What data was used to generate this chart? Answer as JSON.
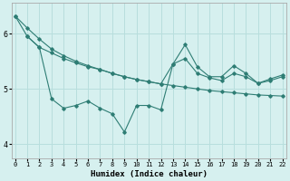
{
  "xlabel": "Humidex (Indice chaleur)",
  "background_color": "#d6f0ef",
  "grid_color": "#b8dedd",
  "line_color": "#2e7d74",
  "ylim": [
    3.75,
    6.55
  ],
  "xlim": [
    -0.3,
    22.3
  ],
  "yticks": [
    4,
    5,
    6
  ],
  "xticks": [
    0,
    1,
    2,
    3,
    4,
    5,
    6,
    7,
    8,
    9,
    10,
    11,
    12,
    13,
    14,
    15,
    16,
    17,
    18,
    19,
    20,
    21,
    22
  ],
  "series1_x": [
    0,
    1,
    2,
    3,
    4,
    5,
    6,
    7,
    8,
    9,
    10,
    11,
    12,
    13,
    14,
    15,
    16,
    17,
    18,
    19,
    20,
    21,
    22
  ],
  "series1_y": [
    6.32,
    6.1,
    5.9,
    5.72,
    5.6,
    5.5,
    5.42,
    5.35,
    5.28,
    5.22,
    5.17,
    5.13,
    5.09,
    5.06,
    5.03,
    5.0,
    4.97,
    4.95,
    4.93,
    4.91,
    4.89,
    4.88,
    4.87
  ],
  "series2_x": [
    0,
    1,
    2,
    3,
    4,
    5,
    6,
    7,
    8,
    9,
    10,
    11,
    12,
    13,
    14,
    15,
    16,
    17,
    18,
    19,
    20,
    21,
    22
  ],
  "series2_y": [
    6.32,
    5.95,
    5.75,
    4.82,
    4.65,
    4.7,
    4.78,
    4.65,
    4.55,
    4.22,
    4.7,
    4.7,
    4.62,
    5.45,
    5.8,
    5.4,
    5.22,
    5.22,
    5.42,
    5.28,
    5.1,
    5.18,
    5.25
  ],
  "series3_x": [
    1,
    2,
    3,
    4,
    5,
    6,
    7,
    8,
    9,
    10,
    11,
    12,
    13,
    14,
    15,
    16,
    17,
    18,
    19,
    20,
    21,
    22
  ],
  "series3_y": [
    5.95,
    5.75,
    5.65,
    5.55,
    5.47,
    5.4,
    5.35,
    5.28,
    5.22,
    5.17,
    5.13,
    5.09,
    5.45,
    5.55,
    5.28,
    5.2,
    5.15,
    5.28,
    5.22,
    5.1,
    5.15,
    5.22
  ]
}
